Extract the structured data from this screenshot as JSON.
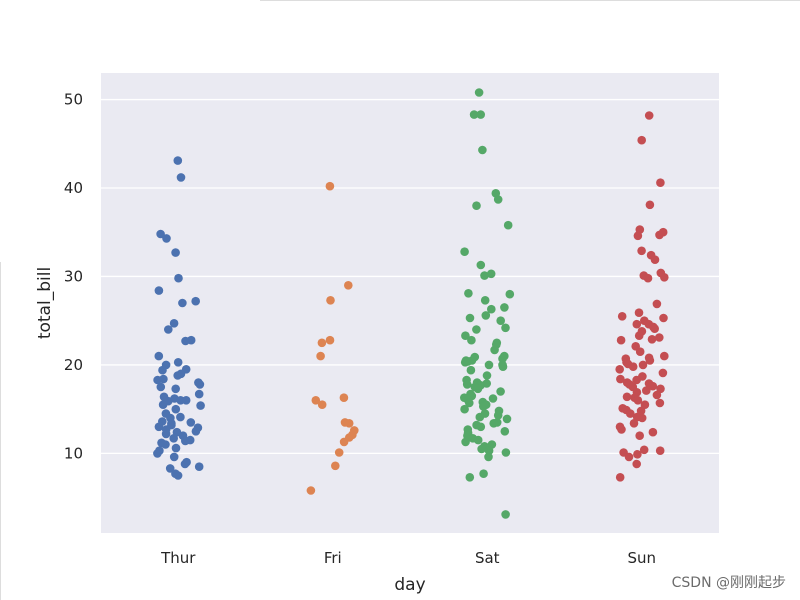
{
  "chart_data": {
    "type": "scatter",
    "subtype": "stripplot",
    "xlabel": "day",
    "ylabel": "total_bill",
    "categories": [
      "Thur",
      "Fri",
      "Sat",
      "Sun"
    ],
    "ylim": [
      1,
      53
    ],
    "yticks": [
      10,
      20,
      30,
      40,
      50
    ],
    "grid": true,
    "colors": [
      "#4c72b0",
      "#dd8452",
      "#55a868",
      "#c44e52"
    ],
    "series": [
      {
        "name": "Thur",
        "values": [
          43.1,
          41.2,
          34.8,
          34.3,
          32.7,
          29.8,
          28.4,
          27.2,
          27.0,
          24.7,
          24.0,
          22.8,
          22.7,
          21.0,
          20.3,
          20.0,
          19.5,
          19.4,
          19.0,
          18.8,
          18.4,
          18.3,
          18.0,
          17.8,
          17.5,
          17.3,
          16.7,
          16.4,
          16.2,
          16.0,
          16.0,
          15.9,
          15.5,
          15.4,
          15.0,
          14.5,
          14.1,
          14.0,
          13.6,
          13.5,
          13.4,
          13.2,
          13.0,
          12.9,
          12.7,
          12.5,
          12.4,
          12.2,
          12.0,
          11.7,
          11.5,
          11.4,
          11.2,
          11.0,
          10.6,
          10.3,
          10.0,
          9.6,
          9.0,
          8.8,
          8.5,
          8.3,
          7.7,
          7.5
        ]
      },
      {
        "name": "Fri",
        "values": [
          40.2,
          29.0,
          27.3,
          22.8,
          22.5,
          21.0,
          16.3,
          16.0,
          15.5,
          13.5,
          13.4,
          12.6,
          12.1,
          11.8,
          11.3,
          10.1,
          8.6,
          5.8
        ]
      },
      {
        "name": "Sat",
        "values": [
          50.8,
          48.3,
          48.3,
          44.3,
          39.4,
          38.7,
          38.0,
          35.8,
          32.8,
          31.3,
          30.3,
          30.1,
          28.1,
          28.0,
          27.3,
          26.5,
          26.3,
          25.6,
          25.3,
          25.0,
          24.2,
          24.0,
          23.3,
          22.8,
          22.5,
          22.3,
          21.7,
          21.0,
          20.9,
          20.7,
          20.5,
          20.5,
          20.4,
          20.3,
          20.0,
          20.0,
          19.8,
          19.4,
          18.8,
          18.3,
          18.0,
          17.9,
          17.8,
          17.7,
          17.5,
          17.3,
          17.0,
          16.7,
          16.5,
          16.3,
          16.2,
          16.0,
          15.8,
          15.7,
          15.5,
          15.3,
          15.0,
          14.8,
          14.5,
          14.3,
          14.1,
          13.9,
          13.5,
          13.4,
          13.2,
          13.0,
          12.7,
          12.5,
          12.3,
          12.0,
          11.7,
          11.5,
          11.3,
          11.0,
          10.8,
          10.5,
          10.3,
          10.1,
          9.6,
          7.7,
          7.3,
          3.1
        ]
      },
      {
        "name": "Sun",
        "values": [
          48.2,
          45.4,
          40.6,
          38.1,
          35.3,
          35.0,
          34.7,
          34.6,
          32.9,
          32.4,
          31.9,
          30.4,
          30.1,
          29.9,
          29.8,
          26.9,
          25.9,
          25.5,
          25.3,
          25.0,
          24.6,
          24.6,
          24.3,
          24.1,
          23.8,
          23.3,
          23.1,
          22.9,
          22.8,
          22.1,
          21.5,
          21.0,
          20.8,
          20.7,
          20.5,
          20.3,
          20.1,
          20.0,
          19.8,
          19.5,
          19.1,
          18.7,
          18.4,
          18.3,
          18.0,
          17.9,
          17.8,
          17.6,
          17.5,
          17.3,
          17.1,
          16.9,
          16.6,
          16.4,
          16.3,
          16.0,
          15.7,
          15.5,
          15.1,
          14.9,
          14.8,
          14.5,
          14.1,
          14.0,
          13.4,
          13.0,
          12.7,
          12.4,
          12.0,
          10.4,
          10.3,
          10.1,
          9.9,
          9.6,
          8.8,
          7.3
        ]
      }
    ]
  },
  "watermark": "CSDN @刚刚起步"
}
